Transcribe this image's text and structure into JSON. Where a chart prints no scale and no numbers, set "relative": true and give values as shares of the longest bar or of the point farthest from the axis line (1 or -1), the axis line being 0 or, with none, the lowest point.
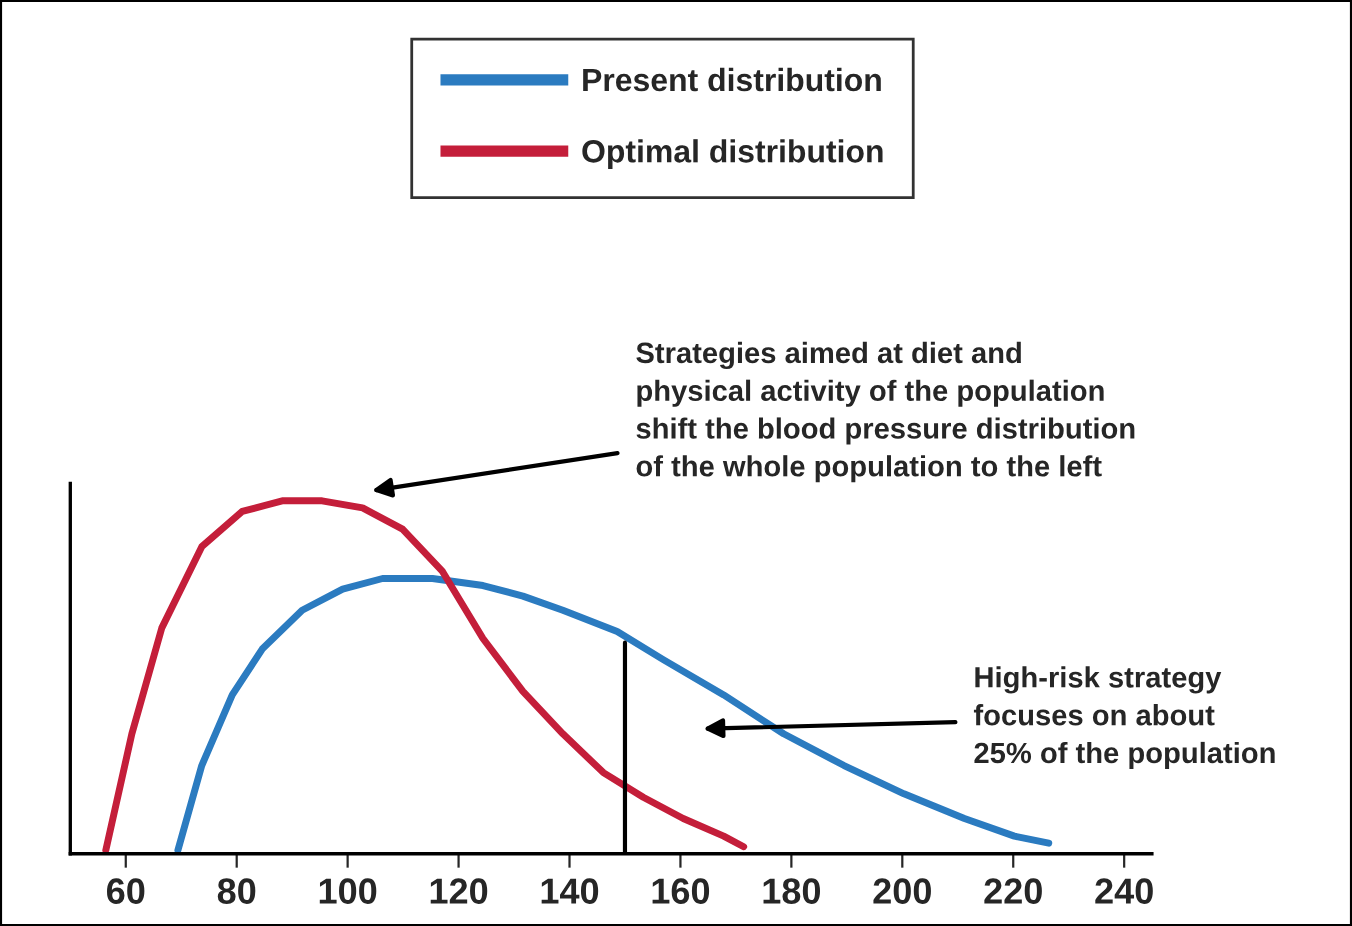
{
  "chart_data": {
    "type": "line",
    "relative": true,
    "xlim": [
      50,
      245
    ],
    "xticks": [
      60,
      80,
      100,
      120,
      140,
      160,
      180,
      200,
      220,
      240
    ],
    "series": [
      {
        "name": "Present distribution",
        "color": "#2b7bc0",
        "x": [
          69.4,
          73.7,
          79.2,
          84.6,
          91.8,
          99.1,
          106.3,
          115.3,
          124.4,
          131.6,
          138.8,
          148.6,
          156.9,
          167.8,
          178.6,
          189.5,
          200.3,
          211.2,
          220.2,
          226.4
        ],
        "values": [
          0.01,
          0.25,
          0.45,
          0.58,
          0.69,
          0.75,
          0.78,
          0.78,
          0.76,
          0.73,
          0.69,
          0.63,
          0.55,
          0.45,
          0.34,
          0.25,
          0.17,
          0.1,
          0.05,
          0.03
        ]
      },
      {
        "name": "Optimal distribution",
        "color": "#c41e3a",
        "x": [
          56.4,
          61.1,
          66.5,
          73.7,
          81.0,
          88.2,
          95.4,
          102.7,
          109.9,
          117.1,
          124.4,
          131.6,
          138.8,
          146.1,
          153.3,
          160.5,
          167.8,
          171.4
        ],
        "values": [
          0.01,
          0.34,
          0.64,
          0.87,
          0.97,
          1.0,
          1.0,
          0.98,
          0.92,
          0.8,
          0.61,
          0.46,
          0.34,
          0.23,
          0.16,
          0.1,
          0.05,
          0.02
        ]
      }
    ],
    "ref_lines": [
      {
        "axis": "x",
        "value": 150,
        "color": "#000000"
      }
    ],
    "annotations": [
      "Strategies aimed at diet and\nphysical activity of the population\nshift the blood pressure distribution\nof the whole population to the left",
      "High-risk strategy\nfocuses on about\n25% of the population"
    ],
    "legend": "top",
    "grid": false,
    "marker": "none",
    "line_style": "solid"
  }
}
